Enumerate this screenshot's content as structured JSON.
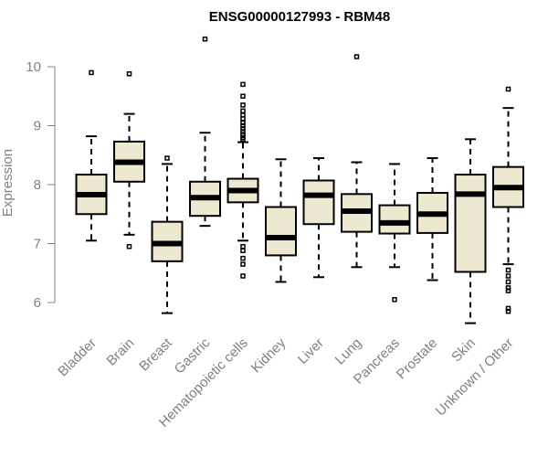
{
  "chart_data": {
    "type": "boxplot",
    "title": "ENSG00000127993 - RBM48",
    "ylabel": "Expression",
    "xlabel": "",
    "ylim": [
      5.5,
      10.6
    ],
    "yticks": [
      6,
      7,
      8,
      9,
      10
    ],
    "grid": false,
    "legend": "none",
    "box_fill": "#ede8d0",
    "box_stroke": "#000000",
    "categories": [
      "Bladder",
      "Brain",
      "Breast",
      "Gastric",
      "Hematopoietic cells",
      "Kidney",
      "Liver",
      "Lung",
      "Pancreas",
      "Prostate",
      "Skin",
      "Unknown / Other"
    ],
    "boxes": [
      {
        "category": "Bladder",
        "whisker_low": 7.05,
        "q1": 7.5,
        "median": 7.83,
        "q3": 8.17,
        "whisker_high": 8.82,
        "outliers": [
          9.9
        ]
      },
      {
        "category": "Brain",
        "whisker_low": 7.15,
        "q1": 8.05,
        "median": 8.38,
        "q3": 8.73,
        "whisker_high": 9.2,
        "outliers": [
          9.88,
          6.95
        ]
      },
      {
        "category": "Breast",
        "whisker_low": 5.82,
        "q1": 6.7,
        "median": 7.0,
        "q3": 7.37,
        "whisker_high": 8.35,
        "outliers": [
          8.45
        ]
      },
      {
        "category": "Gastric",
        "whisker_low": 7.3,
        "q1": 7.47,
        "median": 7.78,
        "q3": 8.05,
        "whisker_high": 8.88,
        "outliers": [
          10.47
        ]
      },
      {
        "category": "Hematopoietic cells",
        "whisker_low": 7.05,
        "q1": 7.7,
        "median": 7.9,
        "q3": 8.1,
        "whisker_high": 8.72,
        "outliers": [
          9.7,
          9.5,
          9.35,
          9.25,
          9.18,
          9.12,
          9.05,
          9.0,
          8.95,
          8.9,
          8.85,
          8.8,
          8.77,
          6.95,
          6.88,
          6.75,
          6.65,
          6.45
        ]
      },
      {
        "category": "Kidney",
        "whisker_low": 6.35,
        "q1": 6.8,
        "median": 7.1,
        "q3": 7.62,
        "whisker_high": 8.43,
        "outliers": []
      },
      {
        "category": "Liver",
        "whisker_low": 6.43,
        "q1": 7.33,
        "median": 7.82,
        "q3": 8.07,
        "whisker_high": 8.45,
        "outliers": []
      },
      {
        "category": "Lung",
        "whisker_low": 6.6,
        "q1": 7.2,
        "median": 7.55,
        "q3": 7.84,
        "whisker_high": 8.38,
        "outliers": [
          10.17
        ]
      },
      {
        "category": "Pancreas",
        "whisker_low": 6.6,
        "q1": 7.17,
        "median": 7.35,
        "q3": 7.65,
        "whisker_high": 8.35,
        "outliers": [
          6.05
        ]
      },
      {
        "category": "Prostate",
        "whisker_low": 6.38,
        "q1": 7.18,
        "median": 7.5,
        "q3": 7.86,
        "whisker_high": 8.45,
        "outliers": []
      },
      {
        "category": "Skin",
        "whisker_low": 5.65,
        "q1": 6.52,
        "median": 7.84,
        "q3": 8.17,
        "whisker_high": 8.77,
        "outliers": []
      },
      {
        "category": "Unknown / Other",
        "whisker_low": 6.65,
        "q1": 7.62,
        "median": 7.95,
        "q3": 8.3,
        "whisker_high": 9.3,
        "outliers": [
          9.62,
          6.55,
          6.45,
          6.35,
          6.25,
          6.2,
          5.9,
          5.85
        ]
      }
    ]
  }
}
